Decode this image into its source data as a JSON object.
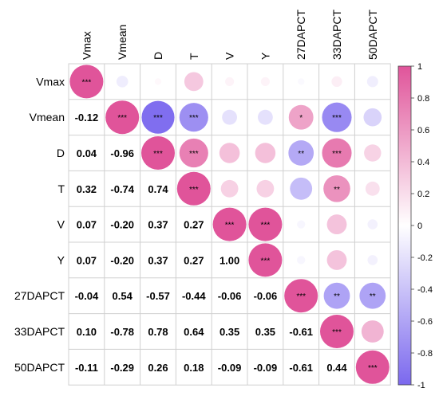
{
  "chart_data": {
    "type": "heatmap",
    "variables": [
      "Vmax",
      "Vmean",
      "D",
      "T",
      "V",
      "Y",
      "27DAPCT",
      "33DAPCT",
      "50DAPCT"
    ],
    "matrix": [
      [
        1.0,
        -0.12,
        0.04,
        0.32,
        0.07,
        0.07,
        -0.04,
        0.1,
        -0.11
      ],
      [
        -0.12,
        1.0,
        -0.96,
        -0.74,
        -0.2,
        -0.2,
        0.54,
        -0.78,
        -0.29
      ],
      [
        0.04,
        -0.96,
        1.0,
        0.74,
        0.37,
        0.37,
        -0.57,
        0.78,
        0.26
      ],
      [
        0.32,
        -0.74,
        0.74,
        1.0,
        0.27,
        0.27,
        -0.44,
        0.64,
        0.18
      ],
      [
        0.07,
        -0.2,
        0.37,
        0.27,
        1.0,
        1.0,
        -0.06,
        0.35,
        -0.09
      ],
      [
        0.07,
        -0.2,
        0.37,
        0.27,
        1.0,
        1.0,
        -0.06,
        0.35,
        -0.09
      ],
      [
        -0.04,
        0.54,
        -0.57,
        -0.44,
        -0.06,
        -0.06,
        1.0,
        -0.61,
        -0.61
      ],
      [
        0.1,
        -0.78,
        0.78,
        0.64,
        0.35,
        0.35,
        -0.61,
        1.0,
        0.44
      ],
      [
        -0.11,
        -0.29,
        0.26,
        0.18,
        -0.09,
        -0.09,
        -0.61,
        0.44,
        1.0
      ]
    ],
    "significance": [
      [
        "***",
        "",
        "",
        "",
        "",
        "",
        "",
        "",
        ""
      ],
      [
        "",
        "***",
        "***",
        "***",
        "",
        "",
        "*",
        "***",
        ""
      ],
      [
        "",
        "",
        "***",
        "***",
        "",
        "",
        "**",
        "***",
        ""
      ],
      [
        "",
        "",
        "",
        "***",
        "",
        "",
        "",
        "**",
        ""
      ],
      [
        "",
        "",
        "",
        "",
        "***",
        "***",
        "",
        "",
        ""
      ],
      [
        "",
        "",
        "",
        "",
        "",
        "***",
        "",
        "",
        ""
      ],
      [
        "",
        "",
        "",
        "",
        "",
        "",
        "***",
        "**",
        "**"
      ],
      [
        "",
        "",
        "",
        "",
        "",
        "",
        "",
        "***",
        ""
      ],
      [
        "",
        "",
        "",
        "",
        "",
        "",
        "",
        "",
        "***"
      ]
    ],
    "upper_triangle": "circles",
    "lower_triangle": "numbers",
    "colorbar": {
      "ticks": [
        "1",
        "0.8",
        "0.6",
        "0.4",
        "0.2",
        "0",
        "-0.2",
        "-0.4",
        "-0.6",
        "-0.8",
        "-1"
      ],
      "range": [
        -1,
        1
      ],
      "colors": {
        "negative": "#7b68ee",
        "zero": "#ffffff",
        "positive": "#e0549a"
      }
    },
    "grid": true,
    "legend_position": "right"
  }
}
